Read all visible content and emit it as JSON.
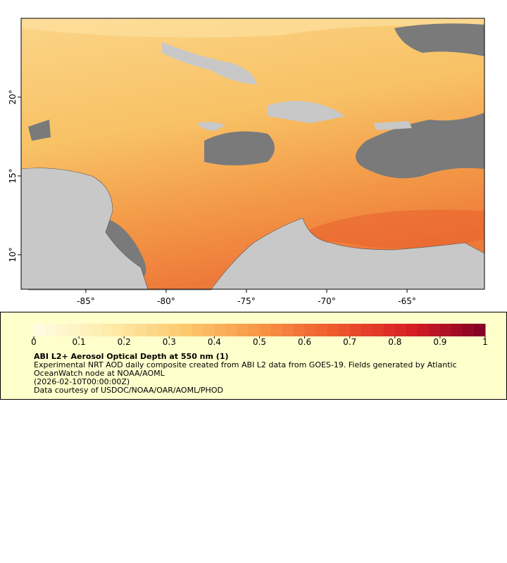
{
  "map": {
    "xlim": [
      -89.03,
      -60.18
    ],
    "ylim": [
      7.81,
      25.0
    ],
    "xticks": [
      {
        "value": -85,
        "label": "-85°"
      },
      {
        "value": -80,
        "label": "-80°"
      },
      {
        "value": -75,
        "label": "-75°"
      },
      {
        "value": -70,
        "label": "-70°"
      },
      {
        "value": -65,
        "label": "-65°"
      }
    ],
    "yticks": [
      {
        "value": 10,
        "label": "10°"
      },
      {
        "value": 15,
        "label": "15°"
      },
      {
        "value": 20,
        "label": "20°"
      }
    ]
  },
  "legend": {
    "colorbar": {
      "lim": [
        0,
        1
      ],
      "ticks": [
        0,
        0.1,
        0.2,
        0.3,
        0.4,
        0.5,
        0.6,
        0.7,
        0.8,
        0.9,
        1
      ]
    },
    "title": "ABI L2+ Aerosol Optical Depth at 550 nm (1)",
    "description": "Experimental NRT AOD daily composite created from ABI L2 data from GOES-19. Fields generated by Atlantic OceanWatch node at NOAA/AOML",
    "time": "(2026-02-10T00:00:00Z)",
    "credit": "Data courtesy of USDOC/NOAA/OAR/AOML/PHOD"
  }
}
